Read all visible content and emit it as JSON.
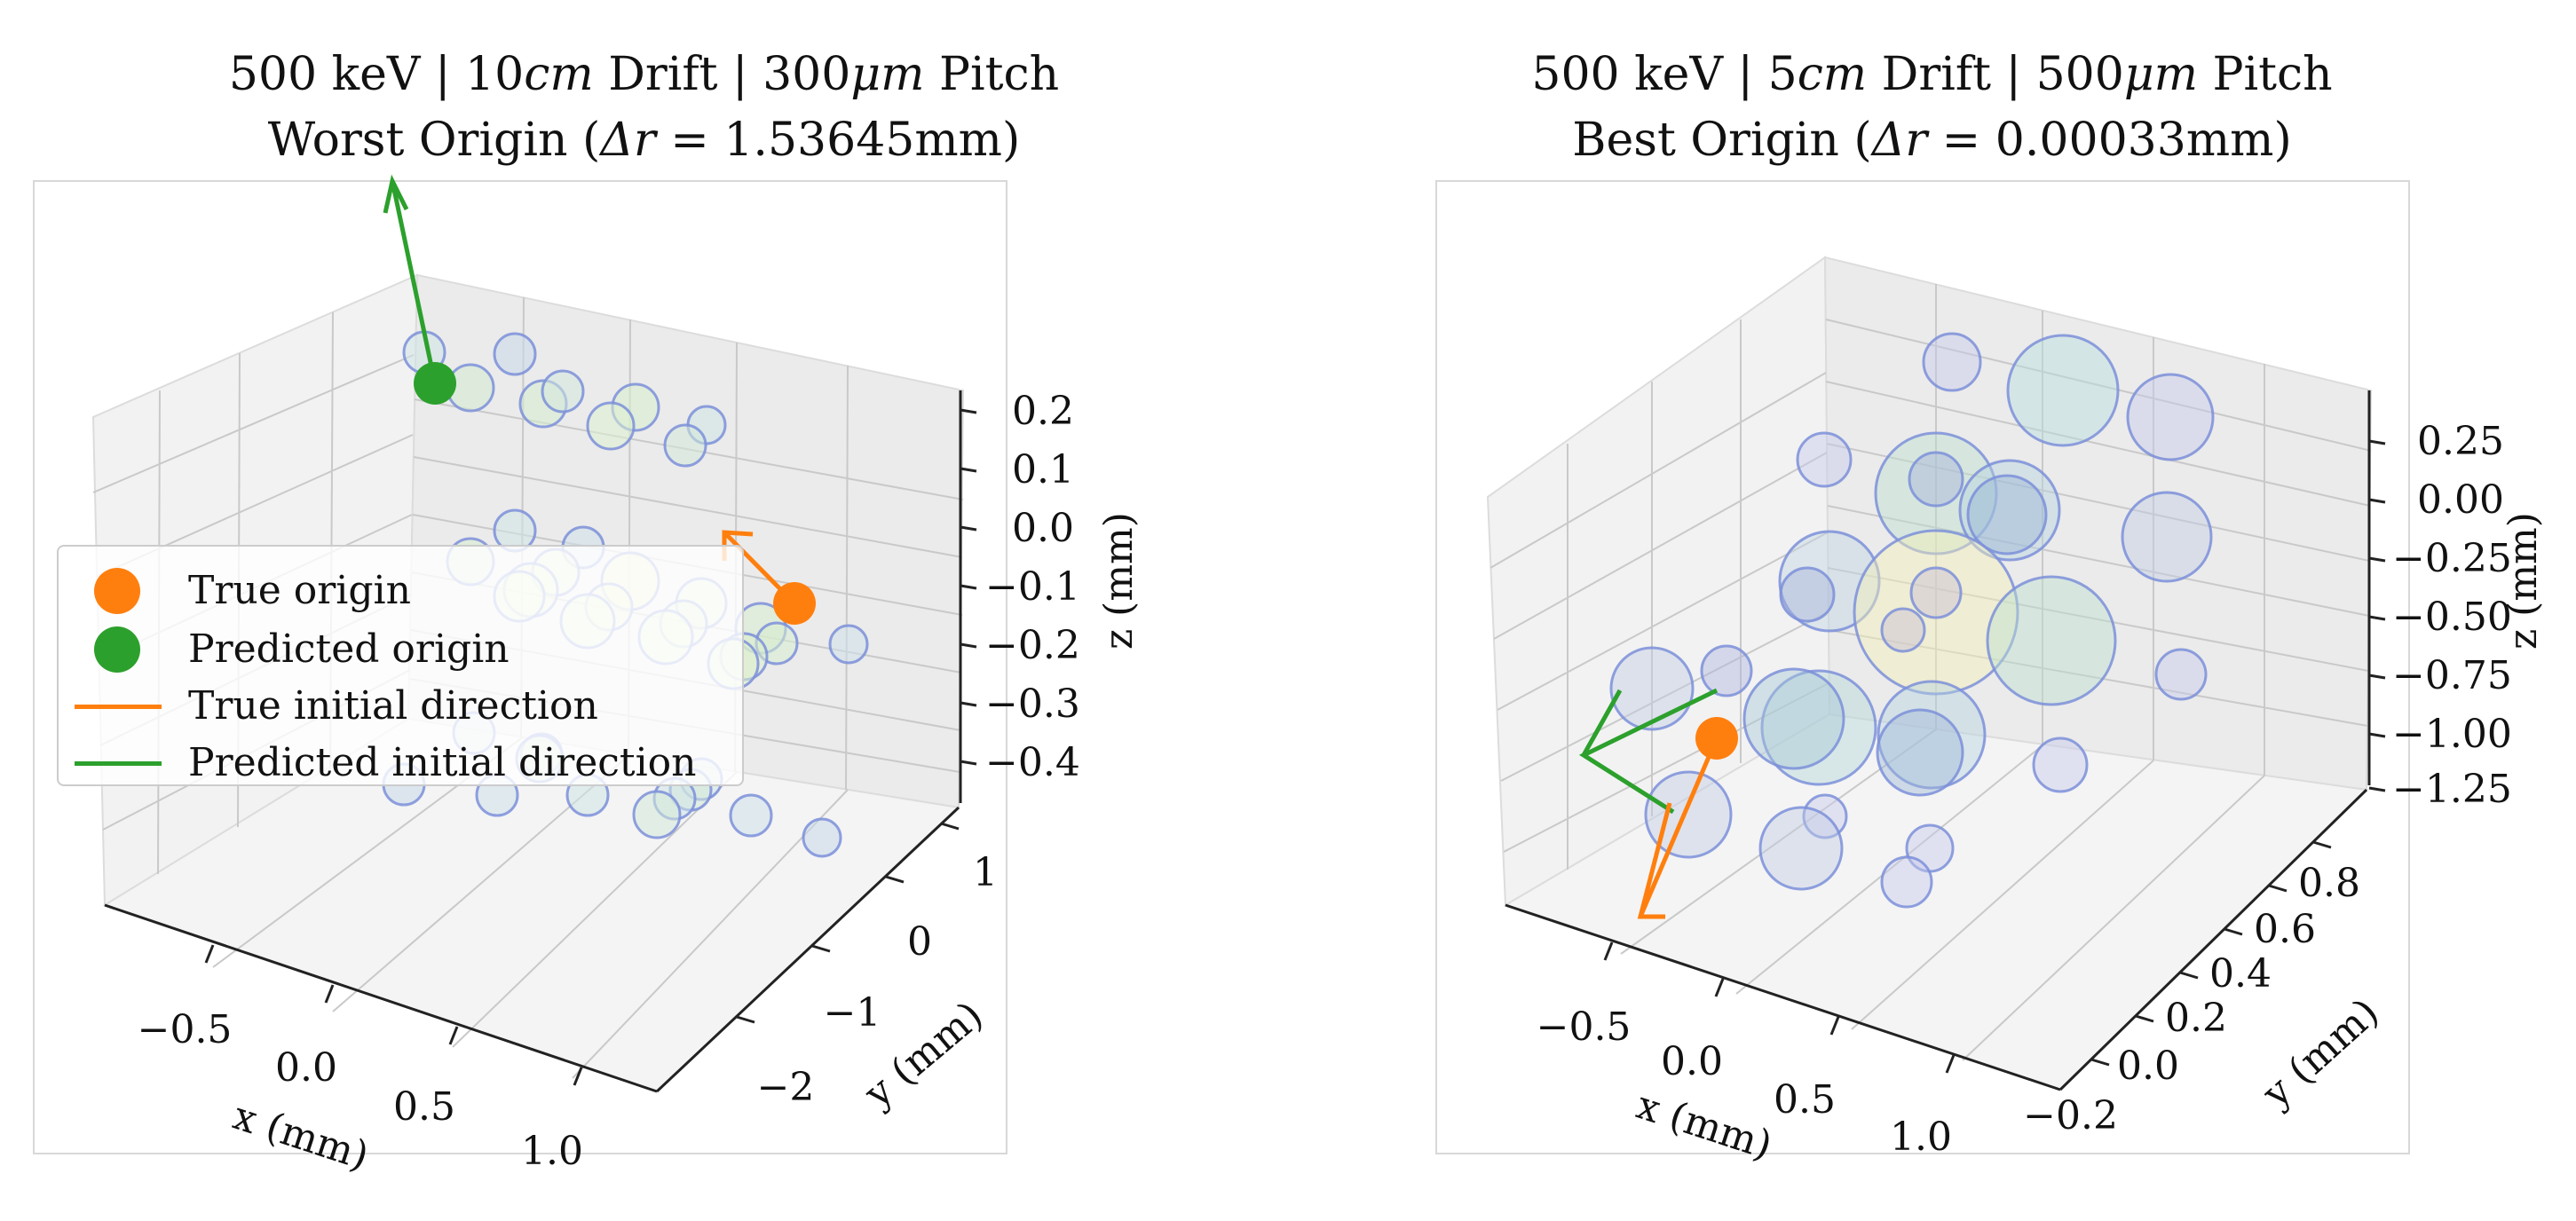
{
  "chart_data": [
    {
      "type": "scatter3d",
      "title": "500 keV | 10cm Drift | 300μm Pitch",
      "subtitle": "Worst Origin (Δr = 1.53645mm)",
      "title_parts": {
        "energy": "500 keV",
        "drift": "10",
        "drift_unit": "cm",
        "drift_word": "Drift",
        "pitch": "300",
        "pitch_unit": "μm",
        "pitch_word": "Pitch"
      },
      "subtitle_parts": {
        "prefix": "Worst Origin (",
        "delta": "Δr",
        "eq": " = ",
        "value": "1.53645mm",
        "suffix": ")"
      },
      "xlabel": "x (mm)",
      "ylabel": "y (mm)",
      "zlabel": "z (mm)",
      "x_ticks": [
        "−0.5",
        "0.0",
        "0.5",
        "1.0"
      ],
      "y_ticks": [
        "−2",
        "−1",
        "0",
        "1"
      ],
      "z_ticks": [
        "0.2",
        "0.1",
        "0.0",
        "−0.1",
        "−0.2",
        "−0.3",
        "−0.4"
      ],
      "true_origin_color": "#ff7f0e",
      "predicted_origin_color": "#2ca02c",
      "hits_color": "#7b8fd9"
    },
    {
      "type": "scatter3d",
      "title": "500 keV | 5cm Drift | 500μm Pitch",
      "subtitle": "Best Origin (Δr = 0.00033mm)",
      "title_parts": {
        "energy": "500 keV",
        "drift": "5",
        "drift_unit": "cm",
        "drift_word": "Drift",
        "pitch": "500",
        "pitch_unit": "μm",
        "pitch_word": "Pitch"
      },
      "subtitle_parts": {
        "prefix": "Best Origin (",
        "delta": "Δr",
        "eq": " = ",
        "value": "0.00033mm",
        "suffix": ")"
      },
      "xlabel": "x (mm)",
      "ylabel": "y (mm)",
      "zlabel": "z (mm)",
      "x_ticks": [
        "−0.5",
        "0.0",
        "0.5",
        "1.0"
      ],
      "y_ticks": [
        "−0.2",
        "0.0",
        "0.2",
        "0.4",
        "0.6",
        "0.8"
      ],
      "z_ticks": [
        "0.25",
        "0.00",
        "−0.25",
        "−0.50",
        "−0.75",
        "−1.00",
        "−1.25"
      ],
      "true_origin_color": "#ff7f0e",
      "predicted_origin_color": "#2ca02c",
      "hits_color": "#7b8fd9"
    }
  ],
  "legend": {
    "items": [
      {
        "label": "True origin",
        "color": "#ff7f0e",
        "marker": "dot"
      },
      {
        "label": "Predicted origin",
        "color": "#2ca02c",
        "marker": "dot"
      },
      {
        "label": "True initial direction",
        "color": "#ff7f0e",
        "marker": "line"
      },
      {
        "label": "Predicted initial direction",
        "color": "#2ca02c",
        "marker": "line"
      }
    ]
  }
}
